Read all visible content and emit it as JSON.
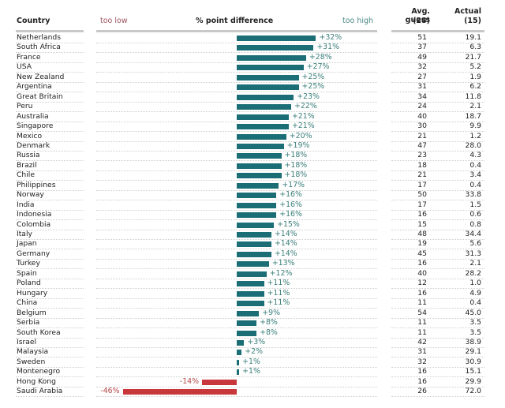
{
  "chart_data": {
    "type": "bar",
    "orientation": "horizontal",
    "title": "% point difference",
    "xlabel": "% point difference",
    "left_label": "too low",
    "right_label": "too high",
    "xlim": [
      -56,
      57
    ],
    "colors": {
      "positive": "#1b6e76",
      "negative": "#c8373b",
      "positive_label": "#3a7f7a",
      "negative_label": "#b54a4a"
    },
    "columns": {
      "country": "Country",
      "guess": "Avg. guess",
      "guess_sub": "(28)",
      "actual": "Actual",
      "actual_sub": "(15)"
    },
    "categories": [
      "Netherlands",
      "South Africa",
      "France",
      "USA",
      "New Zealand",
      "Argentina",
      "Great Britain",
      "Peru",
      "Australia",
      "Singapore",
      "Mexico",
      "Denmark",
      "Russia",
      "Brazil",
      "Chile",
      "Philippines",
      "Norway",
      "India",
      "Indonesia",
      "Colombia",
      "Italy",
      "Japan",
      "Germany",
      "Turkey",
      "Spain",
      "Poland",
      "Hungary",
      "China",
      "Belgium",
      "Serbia",
      "South Korea",
      "Israel",
      "Malaysia",
      "Sweden",
      "Montenegro",
      "Hong Kong",
      "Saudi Arabia"
    ],
    "values": [
      32,
      31,
      28,
      27,
      25,
      25,
      23,
      22,
      21,
      21,
      20,
      19,
      18,
      18,
      18,
      17,
      16,
      16,
      16,
      15,
      14,
      14,
      14,
      13,
      12,
      11,
      11,
      11,
      9,
      8,
      8,
      3,
      2,
      1,
      1,
      -14,
      -46
    ],
    "labels": [
      "+32%",
      "+31%",
      "+28%",
      "+27%",
      "+25%",
      "+25%",
      "+23%",
      "+22%",
      "+21%",
      "+21%",
      "+20%",
      "+19%",
      "+18%",
      "+18%",
      "+18%",
      "+17%",
      "+16%",
      "+16%",
      "+16%",
      "+15%",
      "+14%",
      "+14%",
      "+14%",
      "+13%",
      "+12%",
      "+11%",
      "+11%",
      "+11%",
      "+9%",
      "+8%",
      "+8%",
      "+3%",
      "+2%",
      "+1%",
      "+1%",
      "-14%",
      "-46%"
    ],
    "avg_guess": [
      "51",
      "37",
      "49",
      "32",
      "27",
      "31",
      "34",
      "24",
      "40",
      "30",
      "21",
      "47",
      "23",
      "18",
      "21",
      "17",
      "50",
      "17",
      "16",
      "15",
      "48",
      "19",
      "45",
      "16",
      "40",
      "12",
      "16",
      "11",
      "54",
      "11",
      "11",
      "42",
      "31",
      "32",
      "16",
      "16",
      "26"
    ],
    "actual": [
      "19.1",
      "6.3",
      "21.7",
      "5.2",
      "1.9",
      "6.2",
      "11.8",
      "2.1",
      "18.7",
      "9.9",
      "1.2",
      "28.0",
      "4.3",
      "0.4",
      "3.4",
      "0.4",
      "33.8",
      "1.5",
      "0.6",
      "0.8",
      "34.4",
      "5.6",
      "31.3",
      "2.1",
      "28.2",
      "1.0",
      "4.9",
      "0.4",
      "45.0",
      "3.5",
      "3.5",
      "38.9",
      "29.1",
      "30.9",
      "15.1",
      "29.9",
      "72.0"
    ],
    "grid": false,
    "legend": "none"
  }
}
